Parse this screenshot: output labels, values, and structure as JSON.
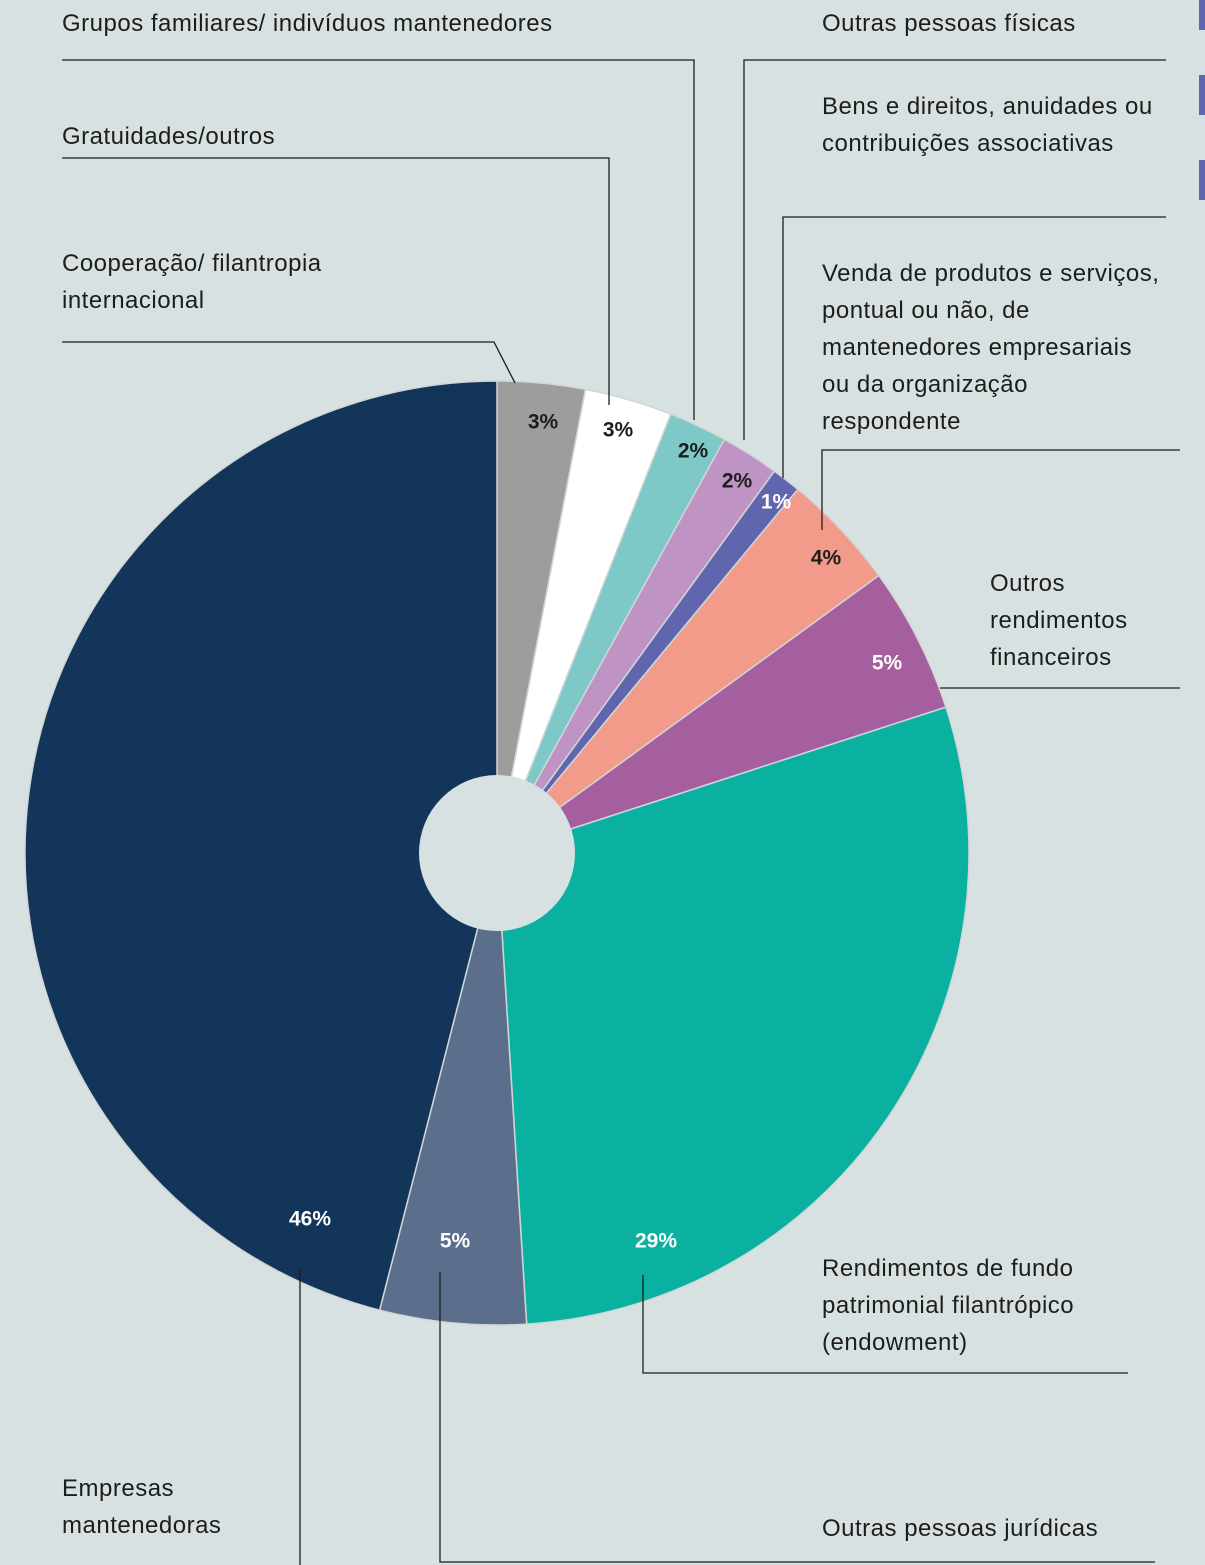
{
  "chart_data": {
    "type": "pie",
    "categories": [
      "Cooperação/ filantropia internacional",
      "Gratuidades/outros",
      "Grupos familiares/ indivíduos mantenedores",
      "Outras pessoas físicas",
      "Bens e direitos, anuidades ou contribuições associativas",
      "Venda de produtos e serviços, pontual ou não, de mantenedores empresariais ou da organização respondente",
      "Outros rendimentos financeiros",
      "Rendimentos de fundo patrimonial filantrópico (endowment)",
      "Outras pessoas jurídicas",
      "Empresas mantenedoras"
    ],
    "values": [
      3,
      3,
      2,
      2,
      1,
      4,
      5,
      29,
      5,
      46
    ],
    "value_labels": [
      "3%",
      "3%",
      "2%",
      "2%",
      "1%",
      "4%",
      "5%",
      "29%",
      "5%",
      "46%"
    ],
    "colors": [
      "#9d9d9b",
      "#ffffff",
      "#7ec8c8",
      "#bf93c4",
      "#5f66ad",
      "#f29b8b",
      "#a55e9e",
      "#0ab1a1",
      "#5b6f8c",
      "#14355a"
    ]
  }
}
